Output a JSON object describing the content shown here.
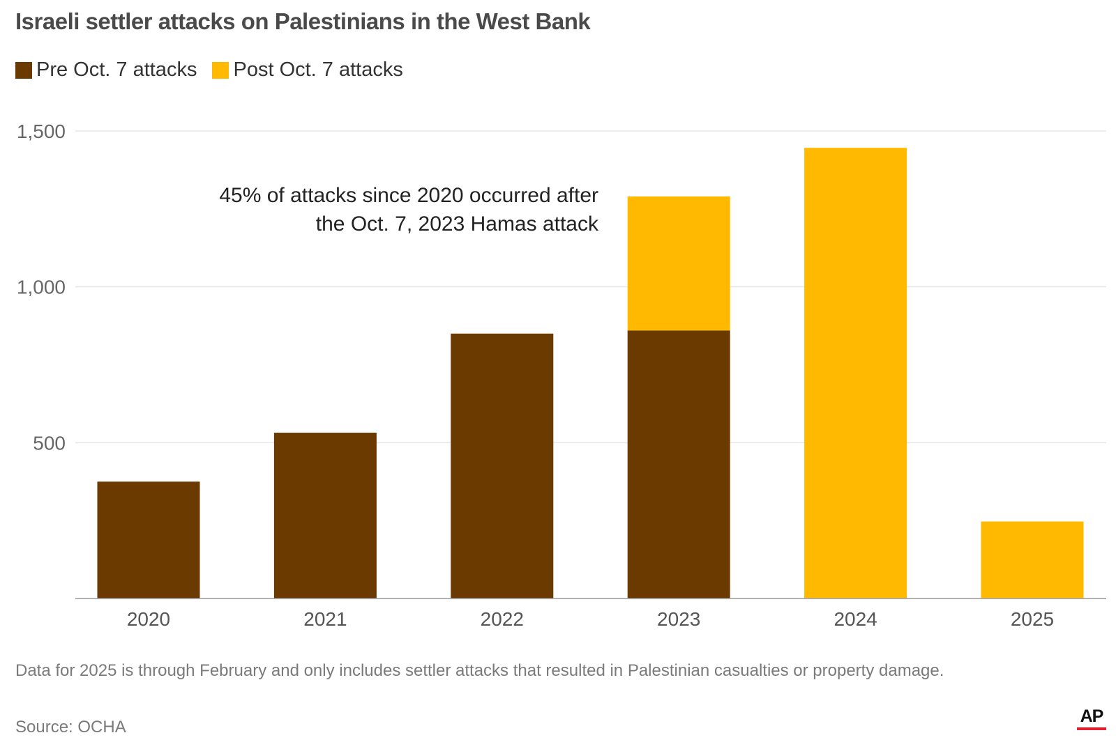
{
  "title": "Israeli settler attacks on Palestinians in the West Bank",
  "legend": {
    "pre_label": "Pre Oct. 7 attacks",
    "post_label": "Post Oct. 7 attacks"
  },
  "colors": {
    "pre": "#6b3a00",
    "post": "#ffba00",
    "grid": "#e6e6e6",
    "axis": "#999999"
  },
  "annotation": {
    "line1": "45% of attacks since 2020 occurred after",
    "line2": "the Oct. 7, 2023 Hamas attack"
  },
  "chart_data": {
    "type": "bar",
    "stacked": true,
    "categories": [
      "2020",
      "2021",
      "2022",
      "2023",
      "2024",
      "2025"
    ],
    "series": [
      {
        "name": "Pre Oct. 7 attacks",
        "values": [
          375,
          532,
          850,
          860,
          0,
          0
        ]
      },
      {
        "name": "Post Oct. 7 attacks",
        "values": [
          0,
          0,
          0,
          430,
          1446,
          247
        ]
      }
    ],
    "yticks": [
      500,
      1000,
      1500
    ],
    "ytick_labels": [
      "500",
      "1,000",
      "1,500"
    ],
    "ylim": [
      0,
      1500
    ],
    "grid": true,
    "legend_position": "top-left"
  },
  "footnote": "Data for 2025 is through February and only includes settler attacks that resulted in Palestinian casualties or property damage.",
  "source": "Source: OCHA",
  "logo_text": "AP"
}
